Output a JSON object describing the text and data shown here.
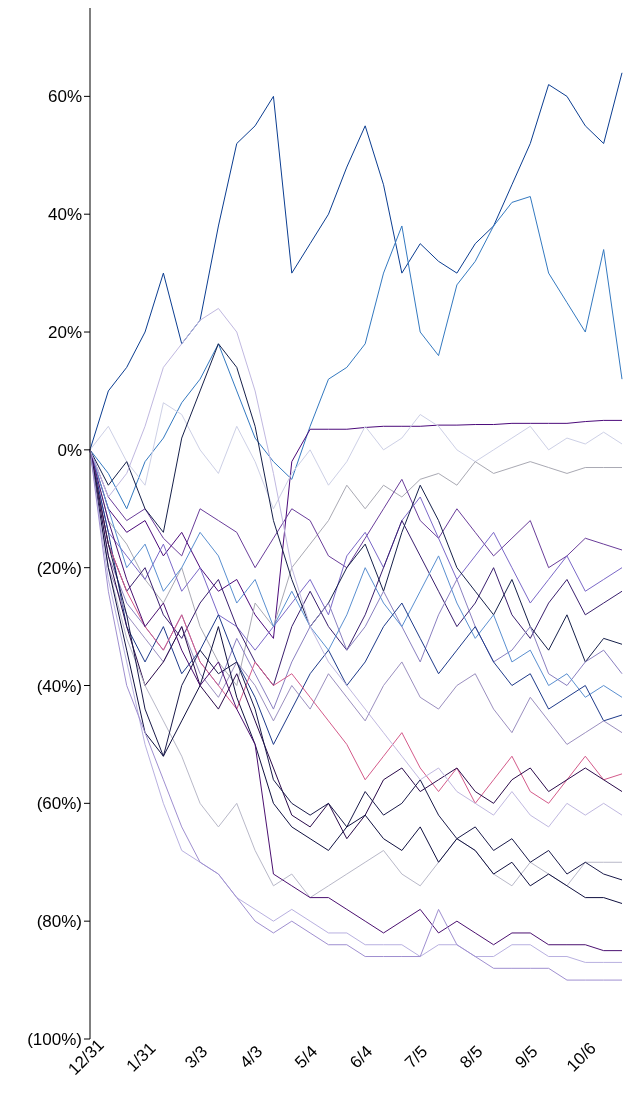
{
  "chart_data": {
    "type": "line",
    "categories": [
      "12/31",
      null,
      null,
      "1/31",
      null,
      null,
      "3/3",
      null,
      null,
      "4/3",
      null,
      null,
      "5/4",
      null,
      null,
      "6/4",
      null,
      null,
      "7/5",
      null,
      null,
      "8/5",
      null,
      null,
      "9/5",
      null,
      null,
      "10/6",
      null,
      null
    ],
    "ylim": [
      -100,
      75
    ],
    "yticks": [
      {
        "value": -100,
        "label": "(100%)"
      },
      {
        "value": -80,
        "label": "(80%)"
      },
      {
        "value": -60,
        "label": "(60%)"
      },
      {
        "value": -40,
        "label": "(40%)"
      },
      {
        "value": -20,
        "label": "(20%)"
      },
      {
        "value": 0,
        "label": "0%"
      },
      {
        "value": 20,
        "label": "20%"
      },
      {
        "value": 40,
        "label": "40%"
      },
      {
        "value": 60,
        "label": "60%"
      }
    ],
    "grid": false,
    "legend": false,
    "marker": "none",
    "line_style": "solid",
    "series": [
      {
        "color": "#0b3d91",
        "values": [
          0,
          10,
          14,
          20,
          30,
          18,
          22,
          38,
          52,
          55,
          60,
          30,
          35,
          40,
          48,
          55,
          45,
          30,
          35,
          32,
          30,
          35,
          38,
          45,
          52,
          62,
          60,
          55,
          52,
          64
        ]
      },
      {
        "color": "#3479c0",
        "values": [
          0,
          -4,
          -10,
          -2,
          2,
          8,
          12,
          18,
          10,
          2,
          -2,
          -5,
          4,
          12,
          14,
          18,
          30,
          38,
          20,
          16,
          28,
          32,
          38,
          42,
          43,
          30,
          25,
          20,
          34,
          12
        ]
      },
      {
        "color": "#4b0a7a",
        "values": [
          0,
          -10,
          -14,
          -12,
          -18,
          -14,
          -20,
          -24,
          -22,
          -28,
          -32,
          -2,
          3.5,
          3.5,
          3.5,
          3.8,
          4,
          4,
          4,
          4.2,
          4.2,
          4.3,
          4.3,
          4.5,
          4.5,
          4.5,
          4.5,
          4.8,
          5,
          5
        ]
      },
      {
        "color": "#cdd0e6",
        "values": [
          0,
          4,
          -2,
          -6,
          8,
          6,
          0,
          -4,
          4,
          -2,
          -10,
          -4,
          0,
          -6,
          -2,
          4,
          0,
          2,
          6,
          4,
          0,
          -2,
          0,
          2,
          4,
          0,
          2,
          1,
          3,
          1
        ]
      },
      {
        "color": "#a9a9b3",
        "values": [
          0,
          -12,
          -16,
          -22,
          -26,
          -20,
          -30,
          -36,
          -40,
          -26,
          -30,
          -20,
          -16,
          -12,
          -6,
          -10,
          -6,
          -8,
          -5,
          -4,
          -6,
          -2,
          -4,
          -3,
          -2,
          -3,
          -4,
          -3,
          -3,
          -3
        ]
      },
      {
        "color": "#6a3d9a",
        "values": [
          0,
          -8,
          -12,
          -10,
          -15,
          -18,
          -10,
          -12,
          -14,
          -20,
          -15,
          -10,
          -12,
          -18,
          -20,
          -15,
          -10,
          -5,
          -12,
          -15,
          -10,
          -14,
          -18,
          -15,
          -12,
          -20,
          -18,
          -15,
          -16,
          -17
        ]
      },
      {
        "color": "#7b68c8",
        "values": [
          0,
          -14,
          -18,
          -22,
          -16,
          -24,
          -20,
          -28,
          -30,
          -34,
          -30,
          -26,
          -22,
          -28,
          -18,
          -14,
          -20,
          -12,
          -8,
          -15,
          -22,
          -18,
          -14,
          -20,
          -26,
          -22,
          -18,
          -24,
          -22,
          -20
        ]
      },
      {
        "color": "#3a1f6e",
        "values": [
          0,
          -16,
          -24,
          -20,
          -28,
          -32,
          -26,
          -22,
          -30,
          -36,
          -40,
          -30,
          -24,
          -30,
          -34,
          -28,
          -20,
          -12,
          -18,
          -24,
          -30,
          -26,
          -20,
          -28,
          -32,
          -26,
          -22,
          -28,
          -26,
          -24
        ]
      },
      {
        "color": "#16204a",
        "values": [
          0,
          -6,
          -2,
          -10,
          -14,
          2,
          10,
          18,
          14,
          4,
          -12,
          -22,
          -30,
          -26,
          -20,
          -16,
          -24,
          -14,
          -6,
          -12,
          -20,
          -24,
          -28,
          -22,
          -30,
          -34,
          -28,
          -36,
          -32,
          -33
        ]
      },
      {
        "color": "#8a7fc0",
        "values": [
          0,
          -18,
          -26,
          -30,
          -34,
          -28,
          -36,
          -40,
          -32,
          -38,
          -44,
          -36,
          -30,
          -26,
          -34,
          -30,
          -24,
          -30,
          -36,
          -28,
          -22,
          -30,
          -36,
          -34,
          -30,
          -38,
          -40,
          -36,
          -34,
          -38
        ]
      },
      {
        "color": "#5a8fd0",
        "values": [
          0,
          -10,
          -20,
          -16,
          -24,
          -20,
          -14,
          -18,
          -26,
          -22,
          -30,
          -24,
          -30,
          -34,
          -28,
          -20,
          -26,
          -30,
          -24,
          -18,
          -26,
          -32,
          -28,
          -36,
          -34,
          -40,
          -38,
          -42,
          -40,
          -42
        ]
      },
      {
        "color": "#1e3a8a",
        "values": [
          0,
          -14,
          -30,
          -36,
          -30,
          -38,
          -34,
          -28,
          -36,
          -42,
          -50,
          -44,
          -38,
          -34,
          -40,
          -36,
          -30,
          -26,
          -32,
          -38,
          -34,
          -30,
          -36,
          -40,
          -38,
          -44,
          -42,
          -40,
          -46,
          -45
        ]
      },
      {
        "color": "#9b8fbf",
        "values": [
          0,
          -20,
          -28,
          -32,
          -36,
          -30,
          -38,
          -42,
          -36,
          -40,
          -46,
          -40,
          -44,
          -38,
          -42,
          -46,
          -40,
          -36,
          -42,
          -44,
          -40,
          -38,
          -44,
          -48,
          -42,
          -46,
          -50,
          -48,
          -46,
          -48
        ]
      },
      {
        "color": "#d45a8a",
        "values": [
          0,
          -16,
          -24,
          -30,
          -34,
          -28,
          -36,
          -40,
          -44,
          -36,
          -40,
          -38,
          -42,
          -46,
          -50,
          -56,
          -52,
          -48,
          -54,
          -58,
          -54,
          -60,
          -56,
          -52,
          -58,
          -60,
          -56,
          -52,
          -56,
          -55
        ]
      },
      {
        "color": "#2a0a4a",
        "values": [
          0,
          -18,
          -30,
          -40,
          -36,
          -30,
          -40,
          -44,
          -38,
          -46,
          -54,
          -62,
          -64,
          -60,
          -66,
          -62,
          -56,
          -54,
          -58,
          -56,
          -54,
          -58,
          -60,
          -56,
          -54,
          -58,
          -56,
          -54,
          -56,
          -58
        ]
      },
      {
        "color": "#b8b8c8",
        "values": [
          0,
          -20,
          -32,
          -40,
          -46,
          -52,
          -60,
          -64,
          -60,
          -68,
          -74,
          -72,
          -76,
          -74,
          -72,
          -70,
          -68,
          -72,
          -74,
          -70,
          -66,
          -68,
          -72,
          -74,
          -70,
          -72,
          -74,
          -70,
          -70,
          -70
        ]
      },
      {
        "color": "#1a1a4a",
        "values": [
          0,
          -16,
          -28,
          -44,
          -52,
          -40,
          -34,
          -38,
          -36,
          -44,
          -56,
          -60,
          -62,
          -60,
          -64,
          -58,
          -62,
          -60,
          -56,
          -62,
          -66,
          -64,
          -68,
          -66,
          -70,
          -68,
          -72,
          -70,
          -72,
          -73
        ]
      },
      {
        "color": "#101040",
        "values": [
          0,
          -20,
          -34,
          -48,
          -52,
          -46,
          -40,
          -30,
          -42,
          -50,
          -60,
          -64,
          -66,
          -68,
          -64,
          -62,
          -66,
          -68,
          -64,
          -70,
          -66,
          -68,
          -72,
          -70,
          -74,
          -72,
          -74,
          -76,
          -76,
          -77
        ]
      },
      {
        "color": "#4b1070",
        "values": [
          0,
          -12,
          -22,
          -30,
          -26,
          -34,
          -40,
          -36,
          -44,
          -50,
          -72,
          -74,
          -76,
          -76,
          -78,
          -80,
          -82,
          -80,
          -78,
          -82,
          -80,
          -82,
          -84,
          -82,
          -82,
          -84,
          -84,
          -84,
          -85,
          -85
        ]
      },
      {
        "color": "#b8b0e0",
        "values": [
          0,
          -22,
          -36,
          -50,
          -60,
          -68,
          -70,
          -72,
          -76,
          -78,
          -80,
          -78,
          -80,
          -82,
          -82,
          -84,
          -84,
          -84,
          -86,
          -84,
          -84,
          -86,
          -86,
          -84,
          -84,
          -86,
          -86,
          -87,
          -87,
          -87
        ]
      },
      {
        "color": "#9f8fd0",
        "values": [
          0,
          -24,
          -40,
          -48,
          -56,
          -64,
          -70,
          -72,
          -76,
          -80,
          -82,
          -80,
          -82,
          -84,
          -84,
          -86,
          -86,
          -86,
          -86,
          -78,
          -84,
          -86,
          -88,
          -88,
          -88,
          -88,
          -90,
          -90,
          -90,
          -90
        ]
      },
      {
        "color": "#c0b8e0",
        "values": [
          0,
          -8,
          -4,
          4,
          14,
          18,
          22,
          24,
          20,
          10,
          -4,
          -20,
          -30,
          -36,
          -40,
          -44,
          -48,
          -52,
          -56,
          -54,
          -58,
          -60,
          -62,
          -58,
          -62,
          -64,
          -60,
          -62,
          -60,
          -62
        ]
      }
    ]
  }
}
